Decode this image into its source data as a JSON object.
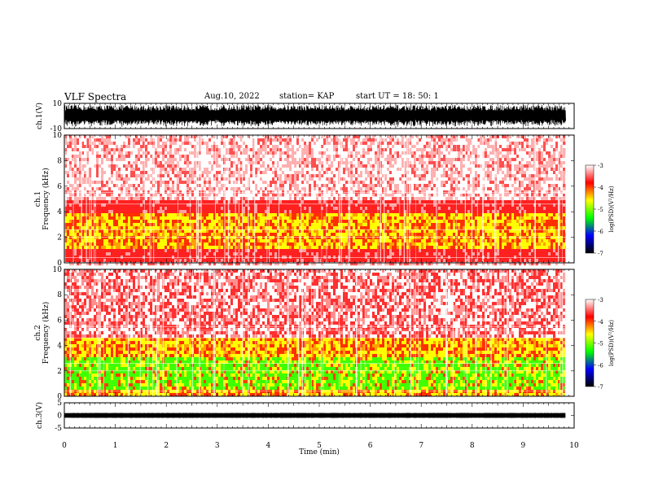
{
  "header": {
    "title": "VLF Spectra",
    "date": "Aug.10, 2022",
    "station": "station= KAP",
    "start": "start UT =  18: 50: 1"
  },
  "colorbar": {
    "label": "log(PSD)(V²/Hz)",
    "ticks": [
      "-3",
      "-4",
      "-5",
      "-6",
      "-7"
    ],
    "colors": [
      "#ffffff",
      "#ff0000",
      "#ffff00",
      "#00ff00",
      "#0000ff",
      "#000000"
    ]
  },
  "chart_data": [
    {
      "type": "line",
      "panel": "ch1-waveform",
      "ylabel": "ch.1(V)",
      "yticks": [
        "10",
        "-10"
      ],
      "ylim": [
        -10,
        10
      ],
      "xlim": [
        0,
        10
      ],
      "style": "dense black oscillating trace filling roughly -8 to +8 V"
    },
    {
      "type": "heatmap",
      "panel": "ch1-spectrogram",
      "ylabel": "ch.1\nFrequency (kHz)",
      "yticks": [
        "0",
        "2",
        "4",
        "6",
        "8",
        "10"
      ],
      "ylim": [
        0,
        10
      ],
      "xlim": [
        0,
        10
      ],
      "bands": [
        {
          "from": 0.0,
          "to": 1.0,
          "level": "red"
        },
        {
          "from": 1.0,
          "to": 3.8,
          "level": "yellow-red"
        },
        {
          "from": 3.8,
          "to": 5.0,
          "level": "red"
        },
        {
          "from": 5.0,
          "to": 10.0,
          "level": "speckled-light-red"
        }
      ]
    },
    {
      "type": "heatmap",
      "panel": "ch2-spectrogram",
      "ylabel": "ch.2\nFrequency (kHz)",
      "yticks": [
        "0",
        "2",
        "4",
        "6",
        "8",
        "10"
      ],
      "ylim": [
        0,
        10
      ],
      "xlim": [
        0,
        10
      ],
      "bands": [
        {
          "from": 0.0,
          "to": 0.5,
          "level": "yellow-red"
        },
        {
          "from": 0.5,
          "to": 3.2,
          "level": "green"
        },
        {
          "from": 3.2,
          "to": 4.5,
          "level": "yellow-red"
        },
        {
          "from": 4.5,
          "to": 10.0,
          "level": "speckled-red"
        }
      ]
    },
    {
      "type": "line",
      "panel": "ch3-waveform",
      "ylabel": "ch.3(V)",
      "yticks": [
        "5",
        "0",
        "-5"
      ],
      "ylim": [
        -5,
        5
      ],
      "xlim": [
        0,
        10
      ],
      "style": "thick black band near 0 V"
    }
  ],
  "xaxis": {
    "label": "Time (min)",
    "ticks": [
      "0",
      "1",
      "2",
      "3",
      "4",
      "5",
      "6",
      "7",
      "8",
      "9",
      "10"
    ],
    "xlim": [
      0,
      10
    ],
    "data_end": 9.83
  }
}
